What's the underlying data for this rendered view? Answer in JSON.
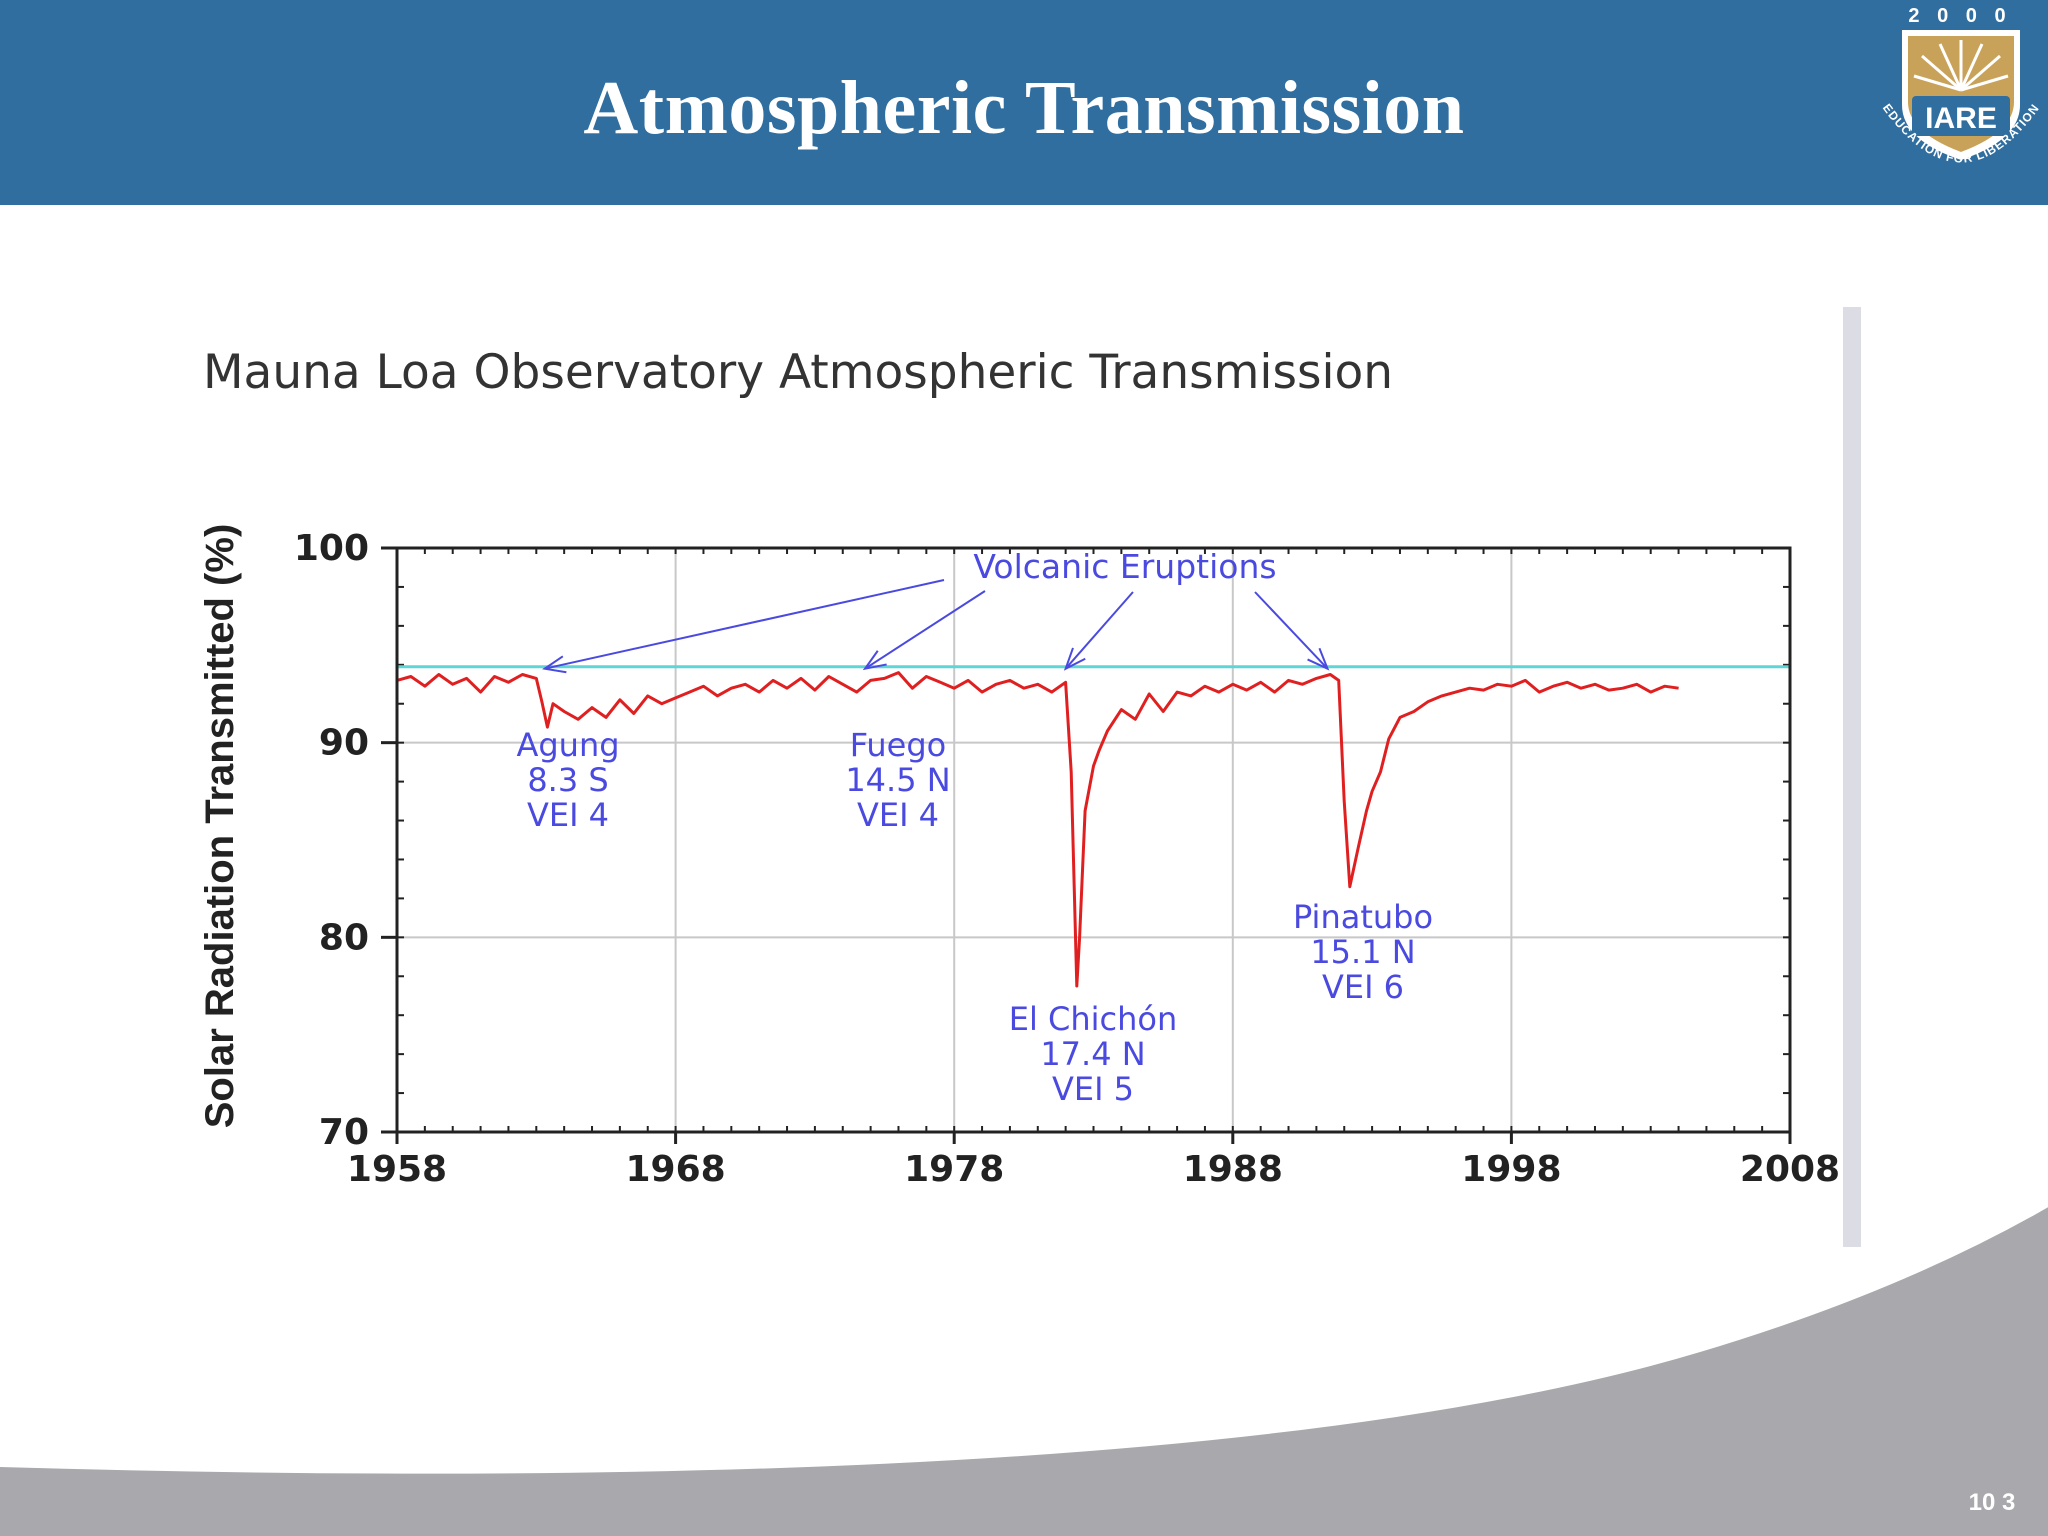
{
  "slide": {
    "title": "Atmospheric Transmission",
    "page_number": "10\n3"
  },
  "logo": {
    "year": "2 0 0 0",
    "name": "IARE",
    "motto": "EDUCATION FOR LIBERATION"
  },
  "colors": {
    "header": "#2f6e9f",
    "series": "#e02020",
    "reference_line": "#5fd6d6",
    "annotation": "#4a4ae0",
    "footer": "#a9a9ad"
  },
  "chart_data": {
    "type": "line",
    "title": "Mauna Loa Observatory Atmospheric Transmission",
    "xlabel": "",
    "ylabel": "Solar Radiation Transmitted (%)",
    "xlim": [
      1958,
      2008
    ],
    "ylim": [
      70,
      100
    ],
    "x_ticks": [
      "1958",
      "1968",
      "1978",
      "1988",
      "1998",
      "2008"
    ],
    "y_ticks": [
      "100",
      "90",
      "80",
      "70"
    ],
    "grid": true,
    "reference_line": {
      "y": 93.9
    },
    "series": [
      {
        "x": [
          1958,
          1958.5,
          1959,
          1959.5,
          1960,
          1960.5,
          1961,
          1961.5,
          1962,
          1962.5,
          1963,
          1963.2,
          1963.4,
          1963.6,
          1964,
          1964.5,
          1965,
          1965.5,
          1966,
          1966.5,
          1967,
          1967.5,
          1968,
          1968.5,
          1969,
          1969.5,
          1970,
          1970.5,
          1971,
          1971.5,
          1972,
          1972.5,
          1973,
          1973.5,
          1974,
          1974.5,
          1975,
          1975.5,
          1976,
          1976.5,
          1977,
          1977.5,
          1978,
          1978.5,
          1979,
          1979.5,
          1980,
          1980.5,
          1981,
          1981.5,
          1982,
          1982.2,
          1982.4,
          1982.5,
          1982.7,
          1983,
          1983.2,
          1983.5,
          1984,
          1984.5,
          1985,
          1985.5,
          1986,
          1986.5,
          1987,
          1987.5,
          1988,
          1988.5,
          1989,
          1989.5,
          1990,
          1990.5,
          1991,
          1991.5,
          1991.8,
          1992,
          1992.2,
          1992.5,
          1992.8,
          1993,
          1993.3,
          1993.6,
          1994,
          1994.5,
          1995,
          1995.5,
          1996,
          1996.5,
          1997,
          1997.5,
          1998,
          1998.5,
          1999,
          1999.5,
          2000,
          2000.5,
          2001,
          2001.5,
          2002,
          2002.5,
          2003,
          2003.5,
          2004
        ],
        "y": [
          93.2,
          93.4,
          92.9,
          93.5,
          93.0,
          93.3,
          92.6,
          93.4,
          93.1,
          93.5,
          93.3,
          92.1,
          90.8,
          92.0,
          91.6,
          91.2,
          91.8,
          91.3,
          92.2,
          91.5,
          92.4,
          92.0,
          92.3,
          92.6,
          92.9,
          92.4,
          92.8,
          93.0,
          92.6,
          93.2,
          92.8,
          93.3,
          92.7,
          93.4,
          93.0,
          92.6,
          93.2,
          93.3,
          93.6,
          92.8,
          93.4,
          93.1,
          92.8,
          93.2,
          92.6,
          93.0,
          93.2,
          92.8,
          93.0,
          92.6,
          93.1,
          88.5,
          77.5,
          80.0,
          86.5,
          88.8,
          89.6,
          90.6,
          91.7,
          91.2,
          92.5,
          91.6,
          92.6,
          92.4,
          92.9,
          92.6,
          93.0,
          92.7,
          93.1,
          92.6,
          93.2,
          93.0,
          93.3,
          93.5,
          93.2,
          87.0,
          82.6,
          84.6,
          86.5,
          87.5,
          88.5,
          90.2,
          91.3,
          91.6,
          92.1,
          92.4,
          92.6,
          92.8,
          92.7,
          93.0,
          92.9,
          93.2,
          92.6,
          92.9,
          93.1,
          92.8,
          93.0,
          92.7,
          92.8,
          93.0,
          92.6,
          92.9,
          92.8
        ]
      }
    ],
    "annotations": [
      {
        "label": "Volcanic Eruptions"
      },
      {
        "label": "Agung",
        "lines": [
          "Agung",
          "8.3 S",
          "VEI  4"
        ],
        "arrow_to": [
          1963.3,
          93.8
        ]
      },
      {
        "label": "Fuego",
        "lines": [
          "Fuego",
          "14.5 N",
          "VEI  4"
        ],
        "arrow_to": [
          1974.8,
          93.8
        ]
      },
      {
        "label": "El Chichón",
        "lines": [
          "El Chichón",
          "17.4 N",
          "VEI  5"
        ],
        "arrow_to": [
          1982.0,
          93.8
        ]
      },
      {
        "label": "Pinatubo",
        "lines": [
          "Pinatubo",
          "15.1 N",
          "VEI  6"
        ],
        "arrow_to": [
          1991.4,
          93.8
        ]
      }
    ]
  }
}
